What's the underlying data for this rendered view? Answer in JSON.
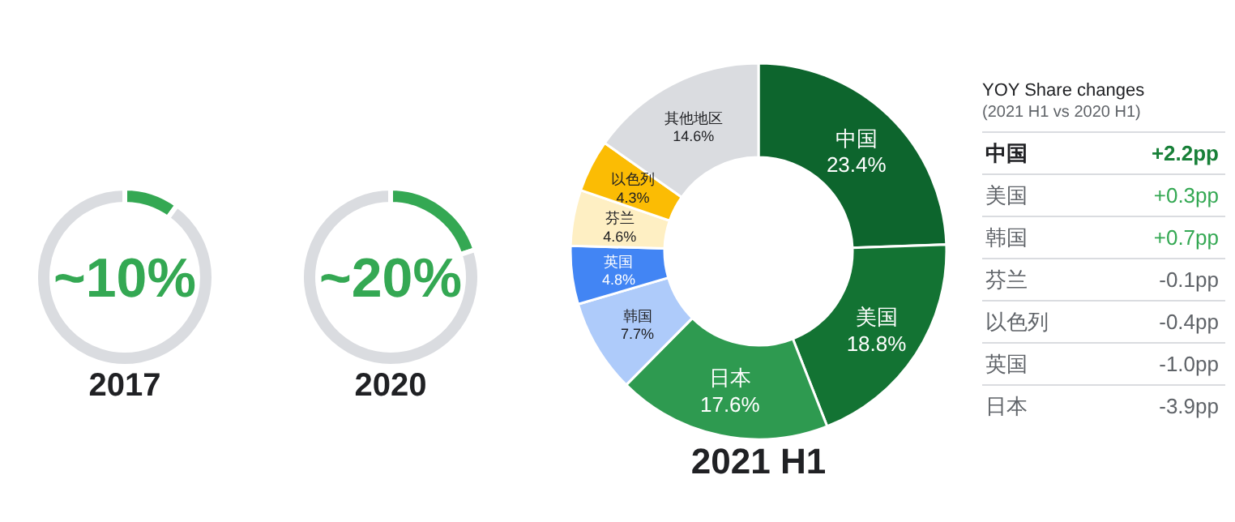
{
  "chart_data": [
    {
      "type": "donut",
      "title": "2017",
      "categories": [
        null,
        null
      ],
      "values": [
        10,
        90
      ],
      "colors": [
        "#34a853",
        "#dadce0"
      ],
      "annotations": [
        "~10%"
      ]
    },
    {
      "type": "donut",
      "title": "2020",
      "categories": [
        null,
        null
      ],
      "values": [
        20,
        80
      ],
      "colors": [
        "#34a853",
        "#dadce0"
      ],
      "annotations": [
        "~20%"
      ]
    },
    {
      "type": "donut",
      "title": "2021 H1",
      "categories": [
        "中国",
        "美国",
        "日本",
        "韩国",
        "英国",
        "芬兰",
        "以色列",
        "其他地区"
      ],
      "values": [
        23.4,
        18.8,
        17.6,
        7.7,
        4.8,
        4.6,
        4.3,
        14.6
      ],
      "value_labels": [
        "23.4%",
        "18.8%",
        "17.6%",
        "7.7%",
        "4.8%",
        "4.6%",
        "4.3%",
        "14.6%"
      ],
      "colors": [
        "#0d652d",
        "#137333",
        "#2e9a50",
        "#aecbfa",
        "#4285f4",
        "#feefc3",
        "#fbbc04",
        "#dadce0"
      ]
    },
    {
      "type": "other",
      "title": "YOY Share changes",
      "subtitle": "(2021 H1 vs 2020 H1)",
      "categories": [
        "中国",
        "美国",
        "韩国",
        "芬兰",
        "以色列",
        "英国",
        "日本"
      ],
      "value_labels": [
        "+2.2pp",
        "+0.3pp",
        "+0.7pp",
        "-0.1pp",
        "-0.4pp",
        "-1.0pp",
        "-3.9pp"
      ],
      "colors": [
        "#188038",
        "#34a853",
        "#34a853",
        "#5f6368",
        "#5f6368",
        "#5f6368",
        "#5f6368"
      ]
    }
  ]
}
